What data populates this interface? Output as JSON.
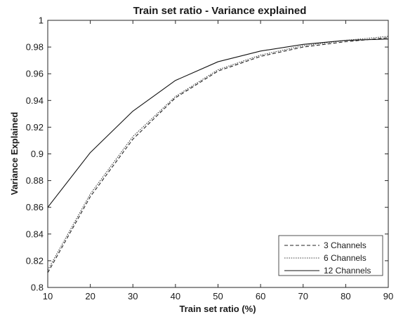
{
  "chart_data": {
    "type": "line",
    "title": "Train set ratio - Variance explained",
    "xlabel": "Train set ratio (%)",
    "ylabel": "Variance Explained",
    "xlim": [
      10,
      90
    ],
    "ylim": [
      0.8,
      1.0
    ],
    "xticks": [
      10,
      20,
      30,
      40,
      50,
      60,
      70,
      80,
      90
    ],
    "yticks": [
      0.8,
      0.82,
      0.84,
      0.86,
      0.88,
      0.9,
      0.92,
      0.94,
      0.96,
      0.98,
      1
    ],
    "ytick_labels": [
      "0.8",
      "0.82",
      "0.84",
      "0.86",
      "0.88",
      "0.9",
      "0.92",
      "0.94",
      "0.96",
      "0.98",
      "1"
    ],
    "grid": false,
    "legend_position": "bottom-right",
    "x": [
      10,
      20,
      30,
      40,
      50,
      60,
      70,
      80,
      90
    ],
    "series": [
      {
        "name": "3 Channels",
        "style": "dashed",
        "color": "#222222",
        "values": [
          0.811,
          0.868,
          0.911,
          0.942,
          0.962,
          0.973,
          0.98,
          0.984,
          0.987
        ]
      },
      {
        "name": "6 Channels",
        "style": "dotted",
        "color": "#444444",
        "values": [
          0.813,
          0.87,
          0.913,
          0.943,
          0.963,
          0.974,
          0.981,
          0.985,
          0.988
        ]
      },
      {
        "name": "12 Channels",
        "style": "solid",
        "color": "#111111",
        "values": [
          0.86,
          0.901,
          0.932,
          0.955,
          0.969,
          0.977,
          0.982,
          0.985,
          0.986
        ]
      }
    ]
  }
}
